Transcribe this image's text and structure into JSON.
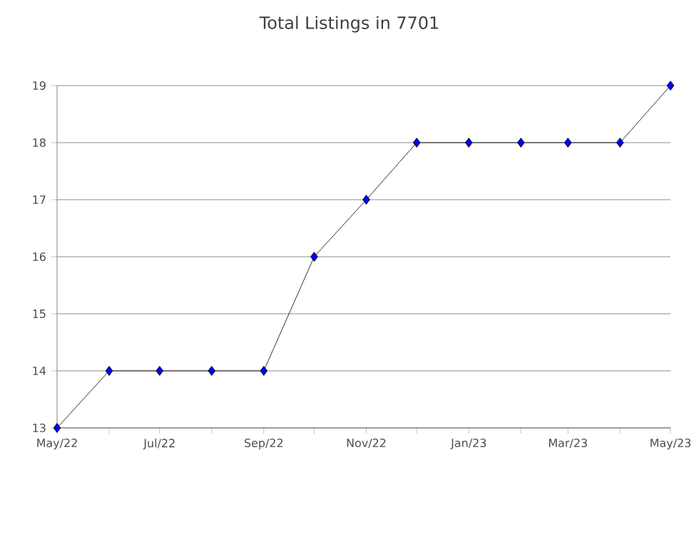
{
  "chart_data": {
    "type": "line",
    "title": "Total Listings in 7701",
    "x": [
      "2022-05",
      "2022-06",
      "2022-07",
      "2022-08",
      "2022-09",
      "2022-10",
      "2022-11",
      "2022-12",
      "2023-01",
      "2023-02",
      "2023-03",
      "2023-04",
      "2023-05"
    ],
    "series": [
      {
        "color": "#0000ff",
        "values": [
          13,
          14,
          14,
          14,
          14,
          16,
          17,
          18,
          18,
          18,
          18,
          18,
          19
        ]
      }
    ],
    "xlim": [
      "2022-05",
      "2023-05"
    ],
    "xticks": [
      {
        "value": "2022-05",
        "label": "May/22"
      },
      {
        "value": "2022-06",
        "label": null
      },
      {
        "value": "2022-07",
        "label": "Jul/22"
      },
      {
        "value": "2022-08",
        "label": null
      },
      {
        "value": "2022-09",
        "label": "Sep/22"
      },
      {
        "value": "2022-10",
        "label": null
      },
      {
        "value": "2022-11",
        "label": "Nov/22"
      },
      {
        "value": "2022-12",
        "label": null
      },
      {
        "value": "2023-01",
        "label": "Jan/23"
      },
      {
        "value": "2023-02",
        "label": null
      },
      {
        "value": "2023-03",
        "label": "Mar/23"
      },
      {
        "value": "2023-04",
        "label": null
      },
      {
        "value": "2023-05",
        "label": "May/23"
      }
    ],
    "ylim": [
      13,
      19
    ],
    "yticks": [
      13,
      14,
      15,
      16,
      17,
      18,
      19
    ],
    "grid": "y",
    "marker": "diamond",
    "line_style": "solid"
  }
}
